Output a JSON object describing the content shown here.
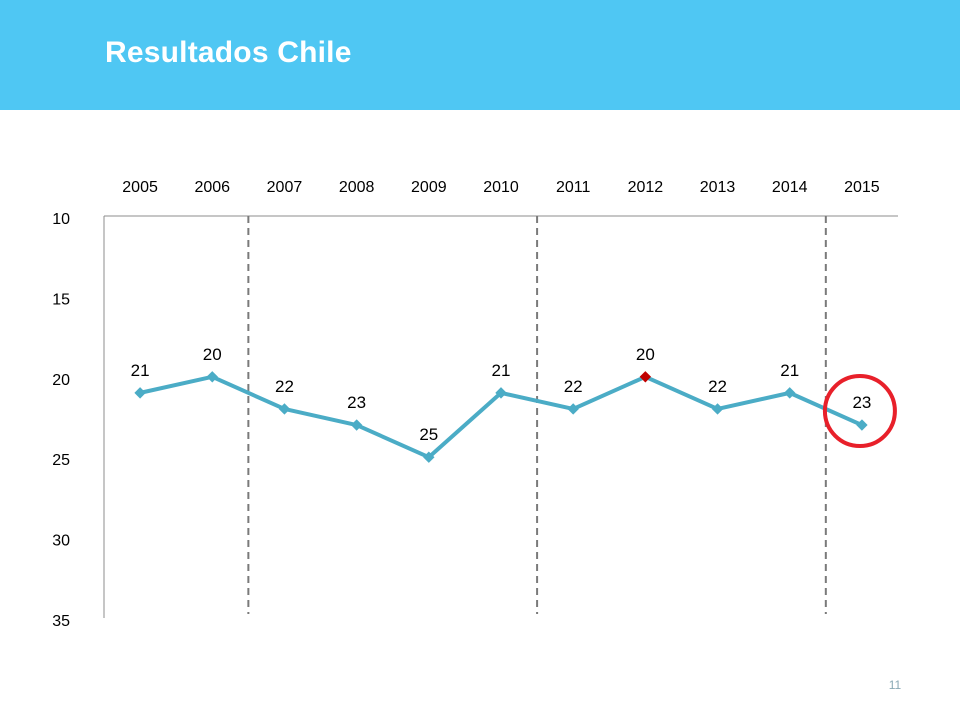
{
  "header": {
    "title": "Resultados Chile",
    "bg_color": "#4fc7f3"
  },
  "page_number": "11",
  "chart_data": {
    "type": "line",
    "title": "",
    "xlabel": "",
    "ylabel": "",
    "x": [
      "2005",
      "2006",
      "2007",
      "2008",
      "2009",
      "2010",
      "2011",
      "2012",
      "2013",
      "2014",
      "2015"
    ],
    "series": [
      {
        "name": "",
        "values": [
          21,
          20,
          22,
          23,
          25,
          21,
          22,
          20,
          22,
          21,
          23
        ],
        "color": "#4bacc6"
      }
    ],
    "data_labels": [
      "21",
      "20",
      "22",
      "23",
      "25",
      "21",
      "22",
      "20",
      "22",
      "21",
      "23"
    ],
    "ylim": [
      10,
      35
    ],
    "y_inverted": true,
    "yticks": [
      "10",
      "15",
      "20",
      "25",
      "30",
      "35"
    ],
    "x_axis_position": "top",
    "grid": false,
    "highlight_point": {
      "x": "2012",
      "color": "#c00000"
    },
    "circled_point": {
      "x": "2015",
      "color": "#e8202a"
    },
    "dashed_verticals_between": [
      [
        "2006",
        "2007"
      ],
      [
        "2010",
        "2011"
      ],
      [
        "2014",
        "2015"
      ]
    ]
  }
}
